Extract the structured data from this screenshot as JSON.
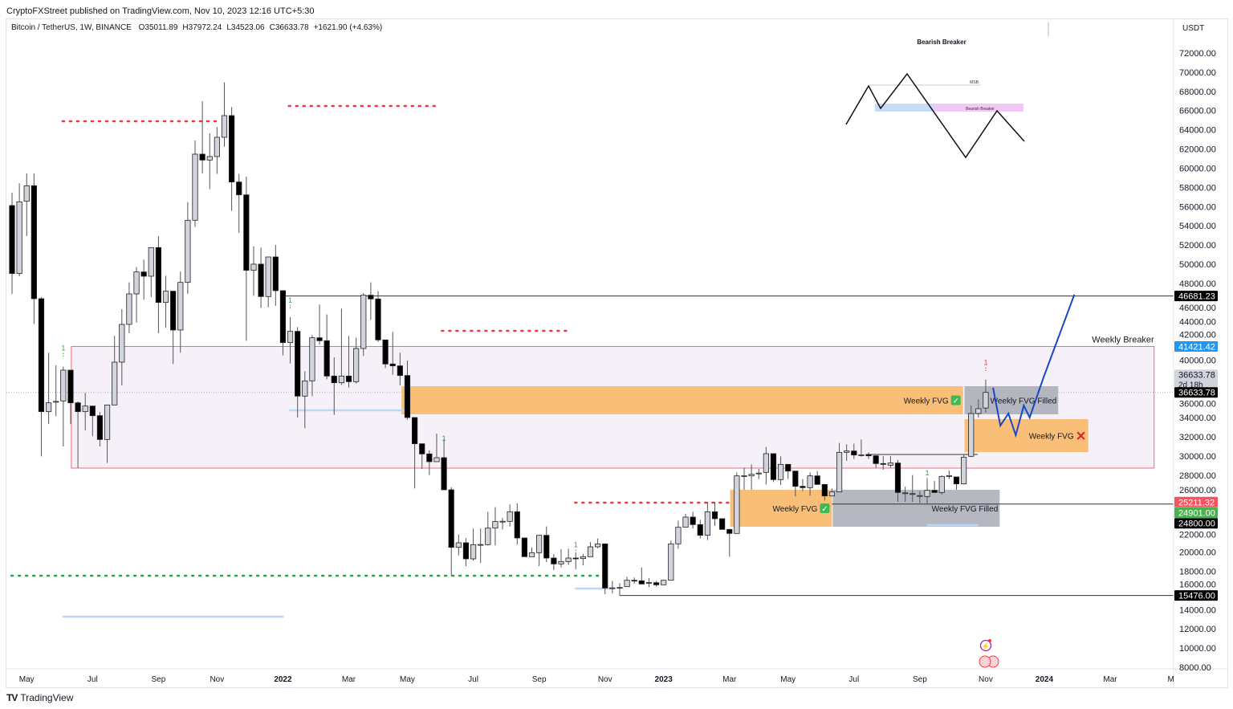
{
  "header": {
    "published": "CryptoFXStreet published on TradingView.com, Nov 10, 2023 12:16 UTC+5:30",
    "symbol": "Bitcoin / TetherUS, 1W, BINANCE",
    "open": "O35011.89",
    "high": "H37972.24",
    "low": "L34523.06",
    "close": "C36633.78",
    "change": "+1621.90 (+4.63%)"
  },
  "footer": {
    "brand": "TradingView",
    "logo": "TV"
  },
  "colors": {
    "bull": "#d1d4dc",
    "bear": "#000000",
    "fvg": "#f9bc72",
    "filled": "#a8abb5",
    "breaker_fill": "#f6f1f9",
    "breaker_border": "#f06b7c",
    "projection": "#1848c8",
    "red_dots": "#f23645",
    "green_dots": "#22ab3c",
    "blue_line": "#bbd9f7"
  },
  "chart_data": {
    "type": "candlestick",
    "title": "Bitcoin / TetherUS, 1W, BINANCE",
    "currency": "USDT",
    "ylim": [
      8000,
      72000
    ],
    "yticks": [
      72000,
      70000,
      68000,
      66000,
      64000,
      62000,
      60000,
      58000,
      56000,
      54000,
      52000,
      50000,
      48000,
      46000,
      44000,
      42000,
      40000,
      38000,
      36000,
      34000,
      32000,
      30000,
      28000,
      26000,
      24000,
      22000,
      20000,
      18000,
      16000,
      14000,
      12000,
      10000,
      8000
    ],
    "xticks": [
      {
        "label": "May",
        "index": 2
      },
      {
        "label": "Jul",
        "index": 11
      },
      {
        "label": "Sep",
        "index": 20
      },
      {
        "label": "Nov",
        "index": 28
      },
      {
        "label": "2022",
        "index": 37,
        "bold": true
      },
      {
        "label": "Mar",
        "index": 46
      },
      {
        "label": "May",
        "index": 54
      },
      {
        "label": "Jul",
        "index": 63
      },
      {
        "label": "Sep",
        "index": 72
      },
      {
        "label": "Nov",
        "index": 81
      },
      {
        "label": "2023",
        "index": 89,
        "bold": true
      },
      {
        "label": "Mar",
        "index": 98
      },
      {
        "label": "May",
        "index": 106
      },
      {
        "label": "Jul",
        "index": 115
      },
      {
        "label": "Sep",
        "index": 124
      },
      {
        "label": "Nov",
        "index": 133
      },
      {
        "label": "2024",
        "index": 141,
        "bold": true
      },
      {
        "label": "Mar",
        "index": 150
      },
      {
        "label": "M",
        "index": 158.3
      }
    ],
    "candles_ohlc": [
      [
        56105,
        57444,
        46903,
        49022
      ],
      [
        49022,
        58420,
        48743,
        56496
      ],
      [
        56552,
        59452,
        52926,
        58169
      ],
      [
        58169,
        59452,
        43779,
        46400
      ],
      [
        46400,
        46568,
        29975,
        34632
      ],
      [
        34632,
        40767,
        33350,
        35552
      ],
      [
        35700,
        39457,
        34158,
        35700
      ],
      [
        35748,
        39318,
        31008,
        38955
      ],
      [
        38955,
        38955,
        33322,
        35552
      ],
      [
        35552,
        35692,
        28776,
        34632
      ],
      [
        34632,
        36584,
        32680,
        35217
      ],
      [
        35217,
        35217,
        32066,
        34214
      ],
      [
        34214,
        34576,
        31008,
        31732
      ],
      [
        31732,
        35329,
        29278,
        35329
      ],
      [
        35329,
        42524,
        35329,
        39791
      ],
      [
        39791,
        45313,
        37365,
        43723
      ],
      [
        43723,
        48102,
        42803,
        46902
      ],
      [
        46902,
        49692,
        43918,
        49189
      ],
      [
        49189,
        50472,
        46289,
        48743
      ],
      [
        48743,
        51727,
        46568,
        51727
      ],
      [
        51727,
        52927,
        42803,
        46010
      ],
      [
        46010,
        48799,
        43360,
        47181
      ],
      [
        47181,
        47181,
        39596,
        43137
      ],
      [
        43137,
        49217,
        40767,
        48102
      ],
      [
        48102,
        56468,
        46902,
        54571
      ],
      [
        54571,
        62882,
        53874,
        61460
      ],
      [
        61460,
        66981,
        59452,
        60847
      ],
      [
        60847,
        63635,
        57806,
        61209
      ],
      [
        61209,
        64276,
        59396,
        63217
      ],
      [
        63217,
        68933,
        62241,
        65476
      ],
      [
        65476,
        66368,
        55548,
        58559
      ],
      [
        58559,
        59396,
        53261,
        57221
      ],
      [
        57221,
        59117,
        42023,
        49357
      ],
      [
        49357,
        51866,
        46707,
        50002
      ],
      [
        50002,
        51727,
        45452,
        46623
      ],
      [
        46623,
        50750,
        45508,
        50750
      ],
      [
        50751,
        52006,
        45647,
        47237
      ],
      [
        47237,
        47237,
        40488,
        41827
      ],
      [
        41827,
        44476,
        39652,
        42998
      ],
      [
        42998,
        43444,
        34019,
        36250
      ],
      [
        36250,
        38843,
        32903,
        37839
      ],
      [
        37839,
        42608,
        36250,
        42329
      ],
      [
        42329,
        45787,
        41604,
        42022
      ],
      [
        42022,
        44755,
        38007,
        38341
      ],
      [
        38341,
        40293,
        34298,
        37644
      ],
      [
        37644,
        45369,
        37420,
        38341
      ],
      [
        38341,
        42524,
        37142,
        37755
      ],
      [
        37755,
        42329,
        37560,
        41213
      ],
      [
        41213,
        46986,
        40433,
        46763
      ],
      [
        46763,
        48102,
        44198,
        46373
      ],
      [
        46373,
        47181,
        41883,
        42106
      ],
      [
        42106,
        42106,
        39178,
        39596
      ],
      [
        39596,
        42942,
        38481,
        39401
      ],
      [
        39401,
        40767,
        37365,
        38397
      ],
      [
        38397,
        39958,
        33796,
        34019
      ],
      [
        34019,
        34019,
        26629,
        31286
      ],
      [
        31286,
        31286,
        28664,
        30226
      ],
      [
        30226,
        30589,
        28023,
        29418
      ],
      [
        29418,
        32345,
        29418,
        29836
      ],
      [
        29836,
        31788,
        26489,
        26489
      ],
      [
        26489,
        26768,
        17565,
        20493
      ],
      [
        20493,
        21831,
        19657,
        20967
      ],
      [
        20967,
        21469,
        18542,
        19294
      ],
      [
        19294,
        22446,
        19099,
        20772
      ],
      [
        20772,
        22445,
        18876,
        20790
      ],
      [
        20772,
        24202,
        20700,
        22501
      ],
      [
        22501,
        24676,
        20689,
        23198
      ],
      [
        23198,
        23561,
        22362,
        23210
      ],
      [
        23198,
        24955,
        22668,
        24202
      ],
      [
        24202,
        25095,
        20772,
        21469
      ],
      [
        21469,
        21469,
        19517,
        19517
      ],
      [
        19517,
        20493,
        19500,
        19936
      ],
      [
        19936,
        21748,
        18541,
        21748
      ],
      [
        21748,
        22668,
        18960,
        19378
      ],
      [
        19378,
        19796,
        18123,
        18764
      ],
      [
        18764,
        20298,
        18402,
        19015
      ],
      [
        19015,
        20354,
        18681,
        19378
      ],
      [
        19378,
        19936,
        18207,
        19322
      ],
      [
        19322,
        19800,
        18625,
        19517
      ],
      [
        19517,
        21051,
        19500,
        20549
      ],
      [
        20549,
        21413,
        20400,
        20856
      ],
      [
        20856,
        20856,
        15613,
        16254
      ],
      [
        16254,
        17007,
        15700,
        16270
      ],
      [
        16254,
        16750,
        15474,
        16310
      ],
      [
        16394,
        17426,
        16394,
        17063
      ],
      [
        17063,
        17350,
        16700,
        17007
      ],
      [
        17007,
        18402,
        16672,
        16672
      ],
      [
        16812,
        17300,
        16350,
        16830
      ],
      [
        16812,
        17000,
        16400,
        16589
      ],
      [
        16589,
        17100,
        16589,
        17063
      ],
      [
        17063,
        21190,
        17063,
        20856
      ],
      [
        20856,
        23282,
        20354,
        22585
      ],
      [
        22585,
        23979,
        22585,
        23645
      ],
      [
        23645,
        24202,
        22445,
        22863
      ],
      [
        22863,
        23366,
        21413,
        21748
      ],
      [
        21748,
        25234,
        21246,
        24202
      ],
      [
        24202,
        25234,
        22724,
        23477
      ],
      [
        23477,
        23477,
        22362,
        22362
      ],
      [
        22362,
        22400,
        19517,
        21943
      ],
      [
        21943,
        28302,
        21943,
        27939
      ],
      [
        27939,
        28775,
        26490,
        27960
      ],
      [
        27940,
        29139,
        26490,
        28107
      ],
      [
        28219,
        28665,
        27600,
        28230
      ],
      [
        28302,
        30952,
        27047,
        30254
      ],
      [
        30254,
        30254,
        27300,
        27549
      ],
      [
        27549,
        29975,
        26991,
        29139
      ],
      [
        29139,
        29139,
        27605,
        28442
      ],
      [
        28442,
        28442,
        25792,
        26852
      ],
      [
        26852,
        27605,
        26351,
        26713
      ],
      [
        26713,
        28302,
        25876,
        27940
      ],
      [
        27940,
        28442,
        27047,
        27047
      ],
      [
        27047,
        27047,
        25374,
        25848
      ],
      [
        25848,
        26629,
        25800,
        26267
      ],
      [
        26267,
        31369,
        26267,
        30394
      ],
      [
        30394,
        31230,
        29501,
        30533
      ],
      [
        30533,
        31300,
        29700,
        30115
      ],
      [
        30115,
        31732,
        29950,
        30130
      ],
      [
        30171,
        30400,
        29700,
        30031
      ],
      [
        30031,
        30100,
        28777,
        29222
      ],
      [
        29222,
        30000,
        28582,
        29139
      ],
      [
        29055,
        30000,
        28800,
        29278
      ],
      [
        29278,
        29600,
        25235,
        26211
      ],
      [
        26155,
        26800,
        25235,
        26170
      ],
      [
        26071,
        28024,
        25235,
        26090
      ],
      [
        25876,
        26350,
        25100,
        25890
      ],
      [
        25793,
        27605,
        24956,
        26434
      ],
      [
        26434,
        27400,
        26150,
        26211
      ],
      [
        26211,
        28000,
        26000,
        27884
      ],
      [
        27940,
        28498,
        27600,
        27960
      ],
      [
        27828,
        27828,
        26490,
        27103
      ],
      [
        27103,
        30115,
        27050,
        29891
      ],
      [
        29976,
        35274,
        29900,
        34437
      ],
      [
        34437,
        35915,
        34019,
        34939
      ],
      [
        35011.89,
        37972.24,
        34523.06,
        36633.78
      ]
    ],
    "annotations": {
      "weekly_breaker": {
        "label": "Weekly Breaker",
        "from_index": 8.1,
        "to_index": 156,
        "top": 41421.42,
        "bottom": 28748
      },
      "fvg_zones": [
        {
          "label": "Weekly FVG",
          "status": "✅",
          "from_index": 53.2,
          "to_index": 129.9,
          "top": 37281,
          "bottom": 34353,
          "kind": "fvg"
        },
        {
          "label": "Weekly FVG Filled",
          "from_index": 130.1,
          "to_index": 142.9,
          "top": 37281,
          "bottom": 34353,
          "kind": "filled"
        },
        {
          "label": "Weekly FVG",
          "status": "❌",
          "from_index": 130.1,
          "to_index": 147,
          "top": 33850,
          "bottom": 30420,
          "kind": "fvg"
        },
        {
          "label": "Weekly FVG",
          "status": "✅",
          "from_index": 98.1,
          "to_index": 112,
          "top": 26489,
          "bottom": 22641,
          "kind": "fvg"
        },
        {
          "label": "Weekly FVG Filled",
          "from_index": 112.1,
          "to_index": 134.9,
          "top": 26489,
          "bottom": 22641,
          "kind": "filled"
        }
      ],
      "horizontal_lines": [
        {
          "price": 46681.23,
          "from_index": 37
        },
        {
          "price": 15476.0,
          "from_index": 83
        },
        {
          "price": 25000,
          "from_index": 112
        },
        {
          "price": 30169,
          "from_index": 117.3,
          "to_index": 131.9
        }
      ],
      "red_dotted_levels": [
        {
          "price": 64889,
          "from_index": 6.9,
          "to_index": 28.2
        },
        {
          "price": 66478,
          "from_index": 37.8,
          "to_index": 58.5
        },
        {
          "price": 43054,
          "from_index": 58.7,
          "to_index": 76.2
        },
        {
          "price": 25150,
          "from_index": 76.9,
          "to_index": 98.1
        }
      ],
      "green_dotted_levels": [
        {
          "price": 17537,
          "from_index": -0.1,
          "to_index": 80.4
        }
      ],
      "blue_levels": [
        {
          "price": 13270,
          "from_index": 6.9,
          "to_index": 37.1
        },
        {
          "price": 34772,
          "from_index": 37.8,
          "to_index": 53.7
        },
        {
          "price": 16200,
          "from_index": 76.9,
          "to_index": 81.7
        },
        {
          "price": 22810,
          "from_index": 125,
          "to_index": 132
        }
      ],
      "projection_path": [
        [
          134,
          37115
        ],
        [
          135,
          33180
        ],
        [
          136.1,
          34437
        ],
        [
          137.1,
          32178
        ],
        [
          138.2,
          35274
        ],
        [
          139,
          34019
        ],
        [
          140.9,
          38201
        ],
        [
          145.1,
          46819
        ]
      ],
      "markers": [
        {
          "index": 7,
          "price": 41000,
          "text": "1",
          "color": "green"
        },
        {
          "index": 38,
          "price": 46000,
          "text": "1",
          "color": "green"
        },
        {
          "index": 59,
          "price": 31600,
          "text": "1",
          "color": "green"
        },
        {
          "index": 77,
          "price": 20500,
          "text": "1",
          "color": "green"
        },
        {
          "index": 125,
          "price": 28000,
          "text": "1",
          "color": "green"
        },
        {
          "index": 133,
          "price": 39500,
          "text": "1",
          "color": "red"
        }
      ],
      "price_labels": [
        {
          "text": "46681.23",
          "price": 46681.23,
          "bg": "#000000",
          "fg": "#ffffff"
        },
        {
          "text": "41421.42",
          "price": 41421.42,
          "bg": "#2196f3",
          "fg": "#ffffff"
        },
        {
          "text": "36633.78",
          "sub": "2d 18h",
          "price": 38000,
          "bg": "#d1d4dc",
          "fg": "#131722"
        },
        {
          "text": "36633.78",
          "price": 36633.78,
          "bg": "#000000",
          "fg": "#ffffff"
        },
        {
          "text": "25211.32",
          "price": 25211.32,
          "bg": "#f7525f",
          "fg": "#ffffff"
        },
        {
          "text": "24901.00",
          "price": 24100,
          "bg": "#4caf50",
          "fg": "#ffffff"
        },
        {
          "text": "24800.00",
          "price": 23000,
          "bg": "#000000",
          "fg": "#ffffff"
        },
        {
          "text": "15476.00",
          "price": 15476.0,
          "bg": "#000000",
          "fg": "#ffffff"
        }
      ],
      "inset": {
        "title": "Bearish Breaker",
        "msb": "MSB",
        "zone": "Bearish Breaker"
      }
    }
  }
}
